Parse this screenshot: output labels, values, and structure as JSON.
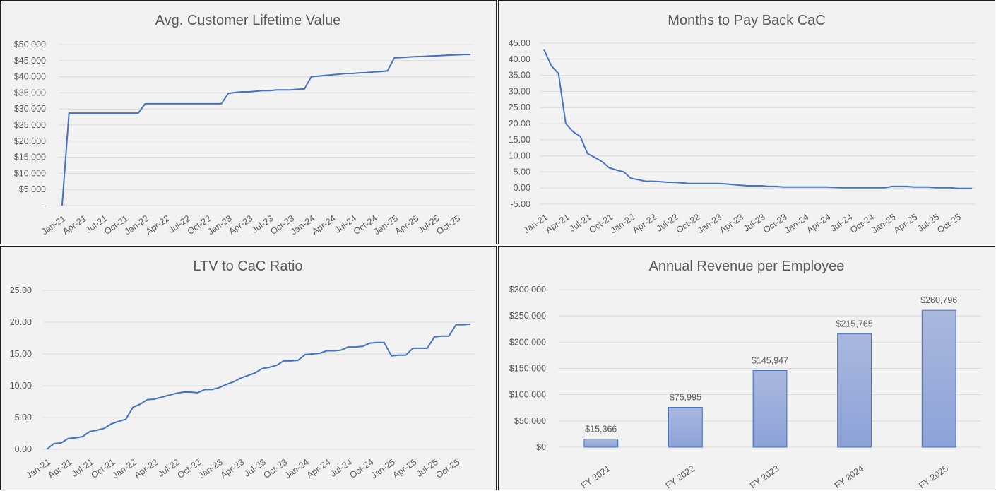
{
  "colors": {
    "line": "#4472c4",
    "bar_top": "#a9b8de",
    "bar_bottom": "#8da2d8",
    "bar_stroke": "#4472c4",
    "grid": "#d9d9d9",
    "text": "#595959"
  },
  "chart_data": [
    {
      "type": "line",
      "title": "Avg. Customer Lifetime Value",
      "x": [
        "Jan-21",
        "Feb-21",
        "Mar-21",
        "Apr-21",
        "May-21",
        "Jun-21",
        "Jul-21",
        "Aug-21",
        "Sep-21",
        "Oct-21",
        "Nov-21",
        "Dec-21",
        "Jan-22",
        "Feb-22",
        "Mar-22",
        "Apr-22",
        "May-22",
        "Jun-22",
        "Jul-22",
        "Aug-22",
        "Sep-22",
        "Oct-22",
        "Nov-22",
        "Dec-22",
        "Jan-23",
        "Feb-23",
        "Mar-23",
        "Apr-23",
        "May-23",
        "Jun-23",
        "Jul-23",
        "Aug-23",
        "Sep-23",
        "Oct-23",
        "Nov-23",
        "Dec-23",
        "Jan-24",
        "Feb-24",
        "Mar-24",
        "Apr-24",
        "May-24",
        "Jun-24",
        "Jul-24",
        "Aug-24",
        "Sep-24",
        "Oct-24",
        "Nov-24",
        "Dec-24",
        "Jan-25",
        "Feb-25",
        "Mar-25",
        "Apr-25",
        "May-25",
        "Jun-25",
        "Jul-25",
        "Aug-25",
        "Sep-25",
        "Oct-25",
        "Nov-25",
        "Dec-25"
      ],
      "x_tick_labels": [
        "Jan-21",
        "Apr-21",
        "Jul-21",
        "Oct-21",
        "Jan-22",
        "Apr-22",
        "Jul-22",
        "Oct-22",
        "Jan-23",
        "Apr-23",
        "Jul-23",
        "Oct-23",
        "Jan-24",
        "Apr-24",
        "Jul-24",
        "Oct-24",
        "Jan-25",
        "Apr-25",
        "Jul-25",
        "Oct-25"
      ],
      "y_tick_labels": [
        "-",
        "$5,000",
        "$10,000",
        "$15,000",
        "$20,000",
        "$25,000",
        "$30,000",
        "$35,000",
        "$40,000",
        "$45,000",
        "$50,000"
      ],
      "ylim": [
        0,
        50000
      ],
      "y_step": 5000,
      "grid": true,
      "series": [
        {
          "values": [
            0,
            28700,
            28700,
            28700,
            28700,
            28700,
            28700,
            28700,
            28700,
            28700,
            28700,
            28700,
            31600,
            31600,
            31600,
            31600,
            31600,
            31600,
            31600,
            31600,
            31600,
            31600,
            31600,
            31600,
            34800,
            35100,
            35300,
            35300,
            35500,
            35700,
            35700,
            35900,
            35900,
            35900,
            36100,
            36200,
            40000,
            40200,
            40400,
            40600,
            40800,
            41000,
            41000,
            41200,
            41300,
            41500,
            41600,
            41800,
            45900,
            45950,
            46100,
            46250,
            46300,
            46400,
            46500,
            46600,
            46700,
            46800,
            46900,
            46900
          ]
        }
      ]
    },
    {
      "type": "line",
      "title": "Months to Pay Back CaC",
      "x": [
        "Jan-21",
        "Feb-21",
        "Mar-21",
        "Apr-21",
        "May-21",
        "Jun-21",
        "Jul-21",
        "Aug-21",
        "Sep-21",
        "Oct-21",
        "Nov-21",
        "Dec-21",
        "Jan-22",
        "Feb-22",
        "Mar-22",
        "Apr-22",
        "May-22",
        "Jun-22",
        "Jul-22",
        "Aug-22",
        "Sep-22",
        "Oct-22",
        "Nov-22",
        "Dec-22",
        "Jan-23",
        "Feb-23",
        "Mar-23",
        "Apr-23",
        "May-23",
        "Jun-23",
        "Jul-23",
        "Aug-23",
        "Sep-23",
        "Oct-23",
        "Nov-23",
        "Dec-23",
        "Jan-24",
        "Feb-24",
        "Mar-24",
        "Apr-24",
        "May-24",
        "Jun-24",
        "Jul-24",
        "Aug-24",
        "Sep-24",
        "Oct-24",
        "Nov-24",
        "Dec-24",
        "Jan-25",
        "Feb-25",
        "Mar-25",
        "Apr-25",
        "May-25",
        "Jun-25",
        "Jul-25",
        "Aug-25",
        "Sep-25",
        "Oct-25",
        "Nov-25",
        "Dec-25"
      ],
      "x_tick_labels": [
        "Jan-21",
        "Apr-21",
        "Jul-21",
        "Oct-21",
        "Jan-22",
        "Apr-22",
        "Jul-22",
        "Oct-22",
        "Jan-23",
        "Apr-23",
        "Jul-23",
        "Oct-23",
        "Jan-24",
        "Apr-24",
        "Jul-24",
        "Oct-24",
        "Jan-25",
        "Apr-25",
        "Jul-25",
        "Oct-25"
      ],
      "y_tick_labels": [
        "-5.00",
        "0.00",
        "5.00",
        "10.00",
        "15.00",
        "20.00",
        "25.00",
        "30.00",
        "35.00",
        "40.00",
        "45.00"
      ],
      "ylim": [
        -5,
        45
      ],
      "y_step": 5,
      "grid": true,
      "series": [
        {
          "values": [
            43,
            38,
            35.5,
            20,
            17.5,
            16,
            10.7,
            9.5,
            8.2,
            6.3,
            5.6,
            5.0,
            3.0,
            2.6,
            2.1,
            2.1,
            2.0,
            1.8,
            1.8,
            1.6,
            1.4,
            1.4,
            1.4,
            1.4,
            1.4,
            1.3,
            1.1,
            0.9,
            0.7,
            0.7,
            0.7,
            0.5,
            0.5,
            0.3,
            0.3,
            0.3,
            0.3,
            0.3,
            0.3,
            0.3,
            0.2,
            0.1,
            0.1,
            0.1,
            0.1,
            0.1,
            0.1,
            0.1,
            0.5,
            0.5,
            0.5,
            0.3,
            0.3,
            0.3,
            0.1,
            0.1,
            0.1,
            -0.1,
            -0.1,
            -0.1
          ]
        }
      ]
    },
    {
      "type": "line",
      "title": "LTV to CaC Ratio",
      "x": [
        "Jan-21",
        "Feb-21",
        "Mar-21",
        "Apr-21",
        "May-21",
        "Jun-21",
        "Jul-21",
        "Aug-21",
        "Sep-21",
        "Oct-21",
        "Nov-21",
        "Dec-21",
        "Jan-22",
        "Feb-22",
        "Mar-22",
        "Apr-22",
        "May-22",
        "Jun-22",
        "Jul-22",
        "Aug-22",
        "Sep-22",
        "Oct-22",
        "Nov-22",
        "Dec-22",
        "Jan-23",
        "Feb-23",
        "Mar-23",
        "Apr-23",
        "May-23",
        "Jun-23",
        "Jul-23",
        "Aug-23",
        "Sep-23",
        "Oct-23",
        "Nov-23",
        "Dec-23",
        "Jan-24",
        "Feb-24",
        "Mar-24",
        "Apr-24",
        "May-24",
        "Jun-24",
        "Jul-24",
        "Aug-24",
        "Sep-24",
        "Oct-24",
        "Nov-24",
        "Dec-24",
        "Jan-25",
        "Feb-25",
        "Mar-25",
        "Apr-25",
        "May-25",
        "Jun-25",
        "Jul-25",
        "Aug-25",
        "Sep-25",
        "Oct-25",
        "Nov-25",
        "Dec-25"
      ],
      "x_tick_labels": [
        "Jan-21",
        "Apr-21",
        "Jul-21",
        "Oct-21",
        "Jan-22",
        "Apr-22",
        "Jul-22",
        "Oct-22",
        "Jan-23",
        "Apr-23",
        "Jul-23",
        "Oct-23",
        "Jan-24",
        "Apr-24",
        "Jul-24",
        "Oct-24",
        "Jan-25",
        "Apr-25",
        "Jul-25",
        "Oct-25"
      ],
      "y_tick_labels": [
        "0.00",
        "5.00",
        "10.00",
        "15.00",
        "20.00",
        "25.00"
      ],
      "ylim": [
        0,
        25
      ],
      "y_step": 5,
      "grid": true,
      "series": [
        {
          "values": [
            0,
            0.9,
            1.0,
            1.7,
            1.8,
            2.0,
            2.8,
            3.0,
            3.3,
            4.0,
            4.4,
            4.7,
            6.6,
            7.1,
            7.8,
            7.9,
            8.2,
            8.5,
            8.8,
            9.0,
            9.0,
            8.9,
            9.4,
            9.4,
            9.7,
            10.2,
            10.6,
            11.2,
            11.6,
            12.0,
            12.7,
            12.9,
            13.2,
            13.9,
            13.9,
            14.0,
            14.9,
            15.0,
            15.1,
            15.5,
            15.5,
            15.6,
            16.1,
            16.1,
            16.2,
            16.7,
            16.8,
            16.8,
            14.7,
            14.8,
            14.8,
            15.9,
            15.9,
            15.9,
            17.7,
            17.8,
            17.8,
            19.6,
            19.6,
            19.7
          ]
        }
      ]
    },
    {
      "type": "bar",
      "title": "Annual Revenue per Employee",
      "categories": [
        "FY 2021",
        "FY 2022",
        "FY 2023",
        "FY 2024",
        "FY 2025"
      ],
      "values": [
        15366,
        75995,
        145947,
        215765,
        260796
      ],
      "data_labels": [
        "$15,366",
        "$75,995",
        "$145,947",
        "$215,765",
        "$260,796"
      ],
      "y_tick_labels": [
        "$0",
        "$50,000",
        "$100,000",
        "$150,000",
        "$200,000",
        "$250,000",
        "$300,000"
      ],
      "ylim": [
        0,
        300000
      ],
      "y_step": 50000,
      "grid": true
    }
  ]
}
